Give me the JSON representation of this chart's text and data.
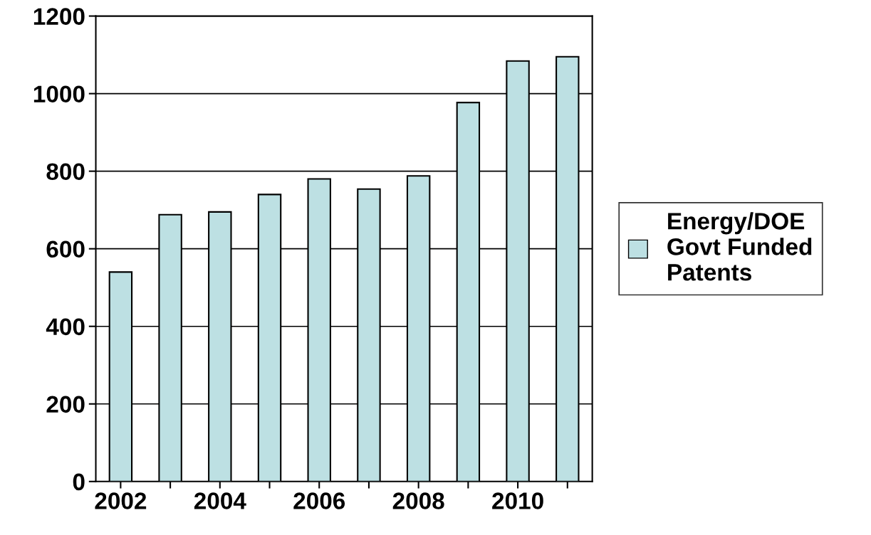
{
  "chart_data": {
    "type": "bar",
    "categories": [
      "2002",
      null,
      "2004",
      null,
      "2006",
      null,
      "2008",
      null,
      "2010",
      null
    ],
    "series": [
      {
        "name": "Energy/DOE\nGovt Funded\nPatents",
        "color": "#bde0e3",
        "values": [
          540,
          688,
          695,
          740,
          780,
          754,
          788,
          977,
          1084,
          1095
        ]
      }
    ],
    "ylim": [
      0,
      1200
    ],
    "yticks": [
      0,
      200,
      400,
      600,
      800,
      1000,
      1200
    ],
    "grid": "y",
    "legend": "right"
  }
}
